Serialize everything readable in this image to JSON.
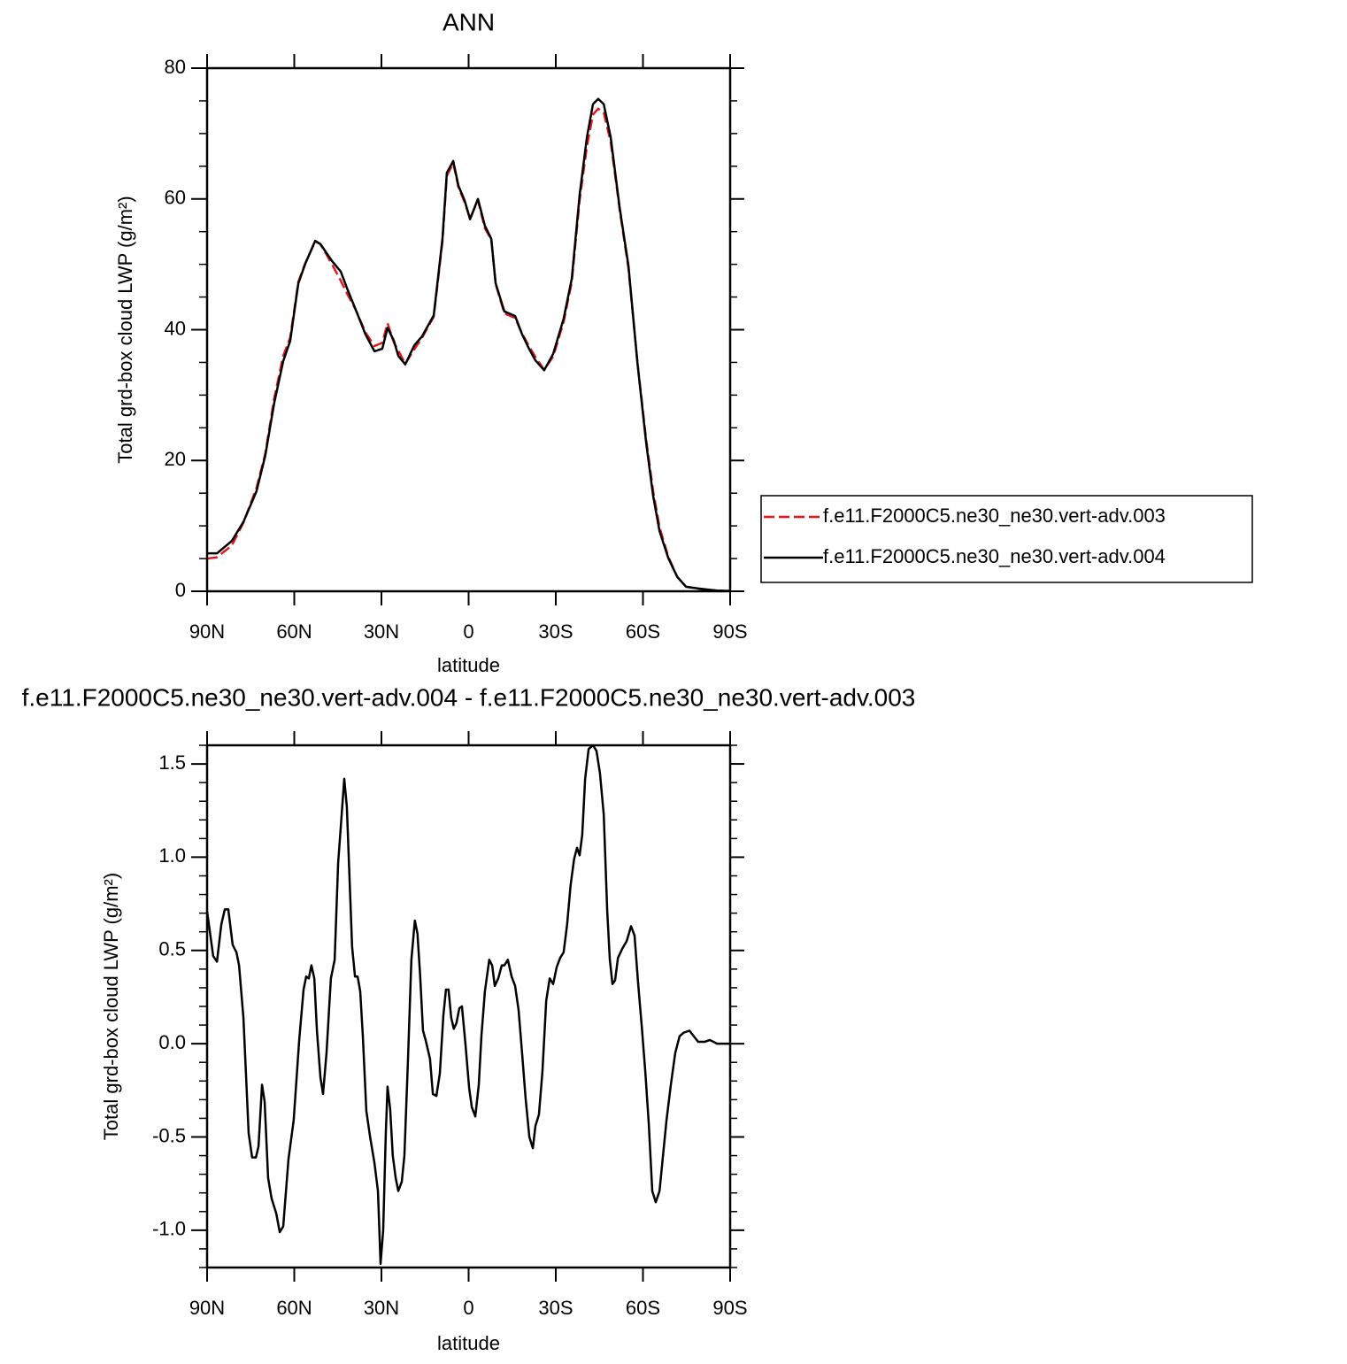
{
  "chart_data": [
    {
      "type": "line",
      "title": "ANN",
      "xlabel": "latitude",
      "ylabel": "Total grd-box cloud LWP (g/m²)",
      "xlim": [
        90,
        -90
      ],
      "xticks": [
        {
          "value": 90,
          "label": "90N"
        },
        {
          "value": 60,
          "label": "60N"
        },
        {
          "value": 30,
          "label": "30N"
        },
        0,
        {
          "value": -30,
          "label": "30S"
        },
        {
          "value": -60,
          "label": "60S"
        },
        {
          "value": -90,
          "label": "90S"
        }
      ],
      "ylim": [
        0,
        80
      ],
      "yticks": [
        0,
        20,
        40,
        60,
        80
      ],
      "yminorticks": [
        5,
        10,
        15,
        25,
        30,
        35,
        45,
        50,
        55,
        65,
        70,
        75
      ],
      "legend": "right",
      "x": [
        90,
        86.6,
        81.5,
        77.5,
        73,
        70,
        66.9,
        63.8,
        61.4,
        58.6,
        56.2,
        52.8,
        51,
        47,
        44,
        41.9,
        38.8,
        35.5,
        32.4,
        29.7,
        27.9,
        25.7,
        24.2,
        21.8,
        18.7,
        16,
        12,
        9,
        7.5,
        5.3,
        3.5,
        1.4,
        -0.5,
        -3.2,
        -5.6,
        -7.8,
        -9.3,
        -12.3,
        -16,
        -18.4,
        -20.9,
        -23,
        -26,
        -29.1,
        -32.7,
        -35.5,
        -38.2,
        -40.7,
        -42.8,
        -44.6,
        -46.5,
        -48.9,
        -52,
        -55,
        -58.1,
        -61.1,
        -63.5,
        -65.7,
        -68.7,
        -71.8,
        -74.8,
        -79.4,
        -85.5,
        -90
      ],
      "series": [
        {
          "name": "f.e11.F2000C5.ne30_ne30.vert-adv.003",
          "color": "#e8161b",
          "dashed": true,
          "values": [
            5,
            5.2,
            7,
            10.5,
            15.8,
            21,
            29.5,
            36,
            38.8,
            47.3,
            50.2,
            53.5,
            53.1,
            50,
            47.5,
            45.6,
            43,
            39.6,
            37.5,
            38,
            41,
            38,
            36.8,
            34.8,
            37,
            38.8,
            42,
            53.5,
            63.5,
            65.5,
            61.8,
            59.5,
            57,
            59.8,
            55.5,
            53.8,
            47,
            42.5,
            41.8,
            39.4,
            37.4,
            35.8,
            33.9,
            35.9,
            41.2,
            47.3,
            59.8,
            68,
            72.9,
            73.8,
            73.2,
            68.7,
            58.3,
            49.4,
            35,
            23.2,
            15.3,
            9.8,
            5.3,
            2.2,
            0.7,
            0.35,
            0.1,
            0.05
          ]
        },
        {
          "name": "f.e11.F2000C5.ne30_ne30.vert-adv.004",
          "color": "#000000",
          "dashed": false,
          "values": [
            5.8,
            5.8,
            7.7,
            10.6,
            15.3,
            20.7,
            28.8,
            35.2,
            38.3,
            47.1,
            50.1,
            53.6,
            53.1,
            50.5,
            48.9,
            46.4,
            43,
            39.3,
            36.7,
            37.1,
            40.3,
            38.3,
            36,
            34.7,
            37.6,
            39,
            42.2,
            53.9,
            64,
            65.8,
            62,
            59.8,
            56.9,
            60,
            55.9,
            53.9,
            47.1,
            42.8,
            42.1,
            39.3,
            37,
            35.3,
            33.8,
            36.3,
            41.7,
            47.8,
            60.6,
            69.4,
            74.5,
            75.3,
            74.5,
            69.4,
            58.6,
            49.8,
            34.9,
            22.7,
            14.6,
            9.2,
            5.1,
            2.2,
            0.7,
            0.4,
            0.1,
            0.05
          ]
        }
      ]
    },
    {
      "type": "line",
      "title": "f.e11.F2000C5.ne30_ne30.vert-adv.004 - f.e11.F2000C5.ne30_ne30.vert-adv.003",
      "xlabel": "latitude",
      "ylabel": "Total grd-box cloud LWP (g/m²)",
      "xlim": [
        90,
        -90
      ],
      "xticks": [
        {
          "value": 90,
          "label": "90N"
        },
        {
          "value": 60,
          "label": "60N"
        },
        {
          "value": 30,
          "label": "30N"
        },
        0,
        {
          "value": -30,
          "label": "30S"
        },
        {
          "value": -60,
          "label": "60S"
        },
        {
          "value": -90,
          "label": "90S"
        }
      ],
      "ylim": [
        -1.2,
        1.6
      ],
      "yticks": [
        {
          "value": -1,
          "label": "-1.0"
        },
        -0.5,
        {
          "value": 0,
          "label": "0.0"
        },
        0.5,
        {
          "value": 1,
          "label": "1.0"
        },
        1.5
      ],
      "yminorticks": [
        -1.2,
        -1.1,
        -0.9,
        -0.8,
        -0.7,
        -0.6,
        -0.4,
        -0.3,
        -0.2,
        -0.1,
        0.1,
        0.2,
        0.3,
        0.4,
        0.6,
        0.7,
        0.8,
        0.9,
        1.1,
        1.2,
        1.3,
        1.4,
        1.6
      ],
      "x": [
        90,
        87.9,
        86.6,
        85.1,
        83.9,
        82.7,
        81.2,
        79.9,
        79,
        77.5,
        75.7,
        74.5,
        73.2,
        72.3,
        71.1,
        70.2,
        69,
        67.8,
        66.2,
        65,
        63.8,
        62,
        60.2,
        58.3,
        56.8,
        55.9,
        55,
        54.1,
        53.1,
        52.2,
        51,
        50.1,
        48.9,
        47.4,
        46.1,
        44.9,
        44,
        42.8,
        41.9,
        40.1,
        39.1,
        38.2,
        37.3,
        36.4,
        35.2,
        33.9,
        32.4,
        31.2,
        30.3,
        29.4,
        28.5,
        27.9,
        27,
        26.1,
        25.1,
        24.2,
        23,
        22.1,
        20.9,
        19.7,
        18.5,
        17.6,
        16.7,
        15.7,
        14.8,
        13.3,
        12.3,
        11.1,
        9.9,
        8.7,
        7.8,
        6.9,
        6,
        5.1,
        4.2,
        3.2,
        2.3,
        1.1,
        -0.2,
        -1.1,
        -2.3,
        -3.5,
        -4.4,
        -5.6,
        -7.1,
        -8.1,
        -9,
        -10.2,
        -11.4,
        -12.3,
        -13.5,
        -14.8,
        -16,
        -17.2,
        -18.4,
        -19.6,
        -20.9,
        -22.1,
        -23,
        -24.2,
        -25.4,
        -26.7,
        -27.9,
        -29.1,
        -30.3,
        -31.5,
        -32.7,
        -33.9,
        -35.1,
        -36.3,
        -37.3,
        -38.2,
        -39.1,
        -40.1,
        -41.3,
        -42.8,
        -44,
        -45.2,
        -46.5,
        -47.7,
        -48.6,
        -49.5,
        -50.4,
        -51.4,
        -52.9,
        -54.4,
        -55.9,
        -57.1,
        -58.3,
        -59.6,
        -60.8,
        -62,
        -63.2,
        -64.4,
        -65.7,
        -66.9,
        -68.1,
        -69.6,
        -71.1,
        -72.6,
        -74.1,
        -76,
        -77.5,
        -79,
        -81.2,
        -83,
        -85.5,
        -90
      ],
      "series": [
        {
          "color": "#000000",
          "dashed": false,
          "values": [
            0.71,
            0.47,
            0.44,
            0.64,
            0.72,
            0.72,
            0.53,
            0.49,
            0.42,
            0.14,
            -0.48,
            -0.61,
            -0.61,
            -0.55,
            -0.22,
            -0.31,
            -0.72,
            -0.83,
            -0.91,
            -1.01,
            -0.98,
            -0.62,
            -0.41,
            0.02,
            0.29,
            0.36,
            0.35,
            0.42,
            0.35,
            0.07,
            -0.18,
            -0.27,
            -0.05,
            0.35,
            0.45,
            0.97,
            1.16,
            1.42,
            1.27,
            0.52,
            0.36,
            0.36,
            0.28,
            0.04,
            -0.36,
            -0.5,
            -0.64,
            -0.79,
            -1.18,
            -1,
            -0.48,
            -0.23,
            -0.35,
            -0.6,
            -0.72,
            -0.79,
            -0.74,
            -0.6,
            -0.1,
            0.45,
            0.66,
            0.59,
            0.37,
            0.07,
            0.02,
            -0.08,
            -0.27,
            -0.28,
            -0.16,
            0.15,
            0.29,
            0.29,
            0.14,
            0.08,
            0.11,
            0.19,
            0.2,
            0,
            -0.24,
            -0.34,
            -0.39,
            -0.22,
            0.04,
            0.28,
            0.45,
            0.42,
            0.31,
            0.35,
            0.42,
            0.42,
            0.45,
            0.36,
            0.31,
            0.18,
            -0.05,
            -0.29,
            -0.5,
            -0.56,
            -0.44,
            -0.38,
            -0.15,
            0.23,
            0.35,
            0.32,
            0.41,
            0.46,
            0.49,
            0.64,
            0.85,
            0.99,
            1.05,
            1.01,
            1.12,
            1.42,
            1.58,
            1.6,
            1.57,
            1.45,
            1.23,
            0.71,
            0.45,
            0.32,
            0.34,
            0.46,
            0.51,
            0.55,
            0.63,
            0.58,
            0.33,
            0.09,
            -0.15,
            -0.43,
            -0.79,
            -0.85,
            -0.79,
            -0.6,
            -0.41,
            -0.22,
            -0.05,
            0.04,
            0.06,
            0.07,
            0.04,
            0.01,
            0.01,
            0.02,
            0,
            0
          ]
        }
      ]
    }
  ]
}
